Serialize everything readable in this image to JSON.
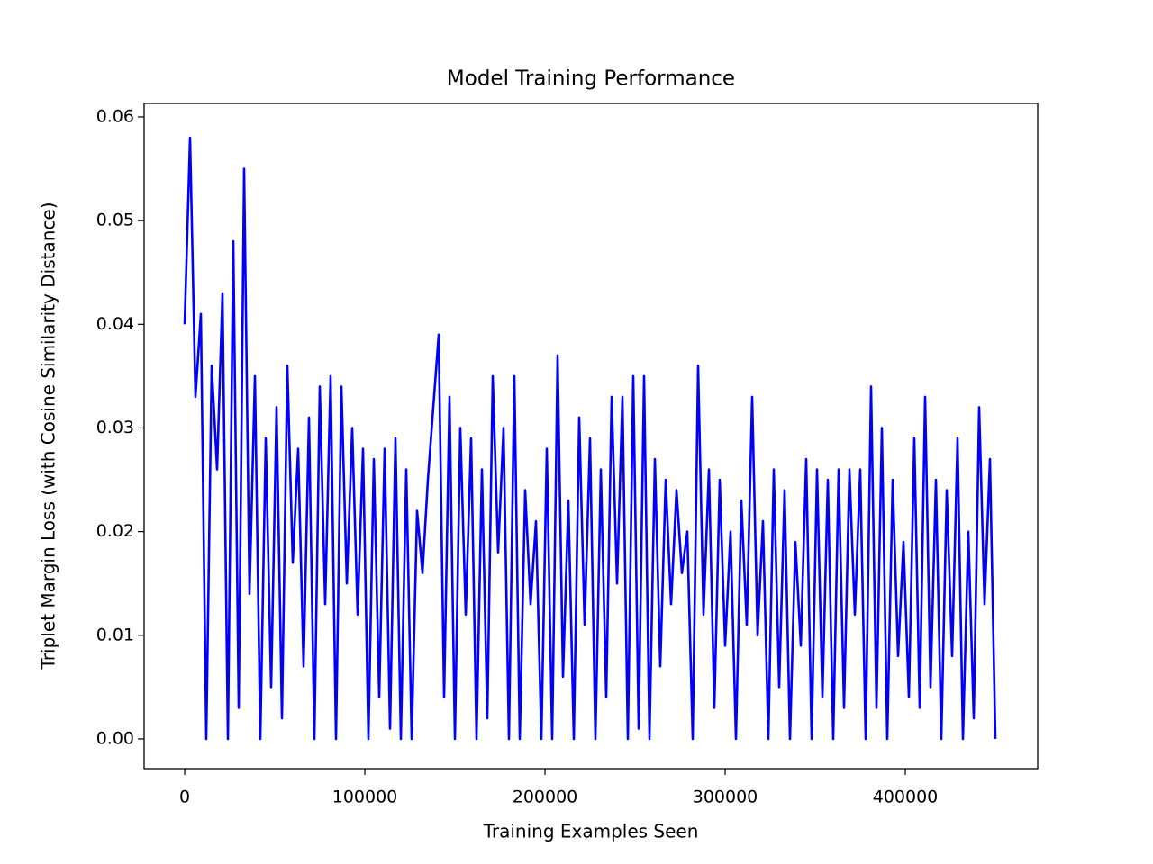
{
  "chart_data": {
    "type": "line",
    "title": "Model Training Performance",
    "x_label": "Training Examples Seen",
    "y_label": "Triplet Margin Loss (with Cosine Similarity Distance)",
    "color": "#0000ff",
    "x": [
      0,
      3000,
      6000,
      9000,
      12000,
      15000,
      18000,
      21000,
      24000,
      27000,
      30000,
      33000,
      36000,
      39000,
      42000,
      45000,
      48000,
      51000,
      54000,
      57000,
      60000,
      63000,
      66000,
      69000,
      72000,
      75000,
      78000,
      81000,
      84000,
      87000,
      90000,
      93000,
      96000,
      99000,
      102000,
      105000,
      108000,
      111000,
      114000,
      117000,
      120000,
      123000,
      126000,
      129000,
      132000,
      135000,
      138000,
      141000,
      144000,
      147000,
      150000,
      153000,
      156000,
      159000,
      162000,
      165000,
      168000,
      171000,
      174000,
      177000,
      180000,
      183000,
      186000,
      189000,
      192000,
      195000,
      198000,
      201000,
      204000,
      207000,
      210000,
      213000,
      216000,
      219000,
      222000,
      225000,
      228000,
      231000,
      234000,
      237000,
      240000,
      243000,
      246000,
      249000,
      252000,
      255000,
      258000,
      261000,
      264000,
      267000,
      270000,
      273000,
      276000,
      279000,
      282000,
      285000,
      288000,
      291000,
      294000,
      297000,
      300000,
      303000,
      306000,
      309000,
      312000,
      315000,
      318000,
      321000,
      324000,
      327000,
      330000,
      333000,
      336000,
      339000,
      342000,
      345000,
      348000,
      351000,
      354000,
      357000,
      360000,
      363000,
      366000,
      369000,
      372000,
      375000,
      378000,
      381000,
      384000,
      387000,
      390000,
      393000,
      396000,
      399000,
      402000,
      405000,
      408000,
      411000,
      414000,
      417000,
      420000,
      423000,
      426000,
      429000,
      432000,
      435000,
      438000,
      441000,
      444000,
      447000,
      450000
    ],
    "values": [
      0.04,
      0.058,
      0.033,
      0.041,
      0.0,
      0.036,
      0.026,
      0.043,
      0.0,
      0.048,
      0.003,
      0.055,
      0.014,
      0.035,
      0.0,
      0.029,
      0.005,
      0.032,
      0.002,
      0.036,
      0.017,
      0.028,
      0.007,
      0.031,
      0.0,
      0.034,
      0.013,
      0.035,
      0.0,
      0.034,
      0.015,
      0.03,
      0.012,
      0.028,
      0.0,
      0.027,
      0.004,
      0.028,
      0.001,
      0.029,
      0.0,
      0.026,
      0.0,
      0.022,
      0.016,
      0.025,
      0.032,
      0.039,
      0.004,
      0.033,
      0.0,
      0.03,
      0.012,
      0.029,
      0.0,
      0.026,
      0.002,
      0.035,
      0.018,
      0.03,
      0.0,
      0.035,
      0.0,
      0.024,
      0.013,
      0.021,
      0.0,
      0.028,
      0.0,
      0.037,
      0.006,
      0.023,
      0.0,
      0.031,
      0.011,
      0.029,
      0.0,
      0.026,
      0.004,
      0.033,
      0.015,
      0.033,
      0.0,
      0.035,
      0.001,
      0.035,
      0.0,
      0.027,
      0.007,
      0.025,
      0.013,
      0.024,
      0.016,
      0.02,
      0.0,
      0.036,
      0.012,
      0.026,
      0.003,
      0.025,
      0.009,
      0.02,
      0.0,
      0.023,
      0.011,
      0.033,
      0.01,
      0.021,
      0.0,
      0.026,
      0.005,
      0.024,
      0.0,
      0.019,
      0.009,
      0.027,
      0.0,
      0.026,
      0.004,
      0.025,
      0.0,
      0.026,
      0.003,
      0.026,
      0.012,
      0.026,
      0.0,
      0.034,
      0.003,
      0.03,
      0.0,
      0.025,
      0.008,
      0.019,
      0.004,
      0.029,
      0.003,
      0.033,
      0.005,
      0.025,
      0.0,
      0.024,
      0.008,
      0.029,
      0.0,
      0.02,
      0.002,
      0.032,
      0.013,
      0.027,
      0.0
    ],
    "xlim": [
      -22500,
      473500
    ],
    "xticks": [
      0,
      100000,
      200000,
      300000,
      400000
    ],
    "ylim": [
      -0.00287,
      0.0613
    ],
    "yticks": [
      {
        "value": 0,
        "label": "0.00"
      },
      {
        "value": 0.01,
        "label": "0.01"
      },
      {
        "value": 0.02,
        "label": "0.02"
      },
      {
        "value": 0.03,
        "label": "0.03"
      },
      {
        "value": 0.04,
        "label": "0.04"
      },
      {
        "value": 0.05,
        "label": "0.05"
      },
      {
        "value": 0.06,
        "label": "0.06"
      }
    ],
    "grid": false
  }
}
